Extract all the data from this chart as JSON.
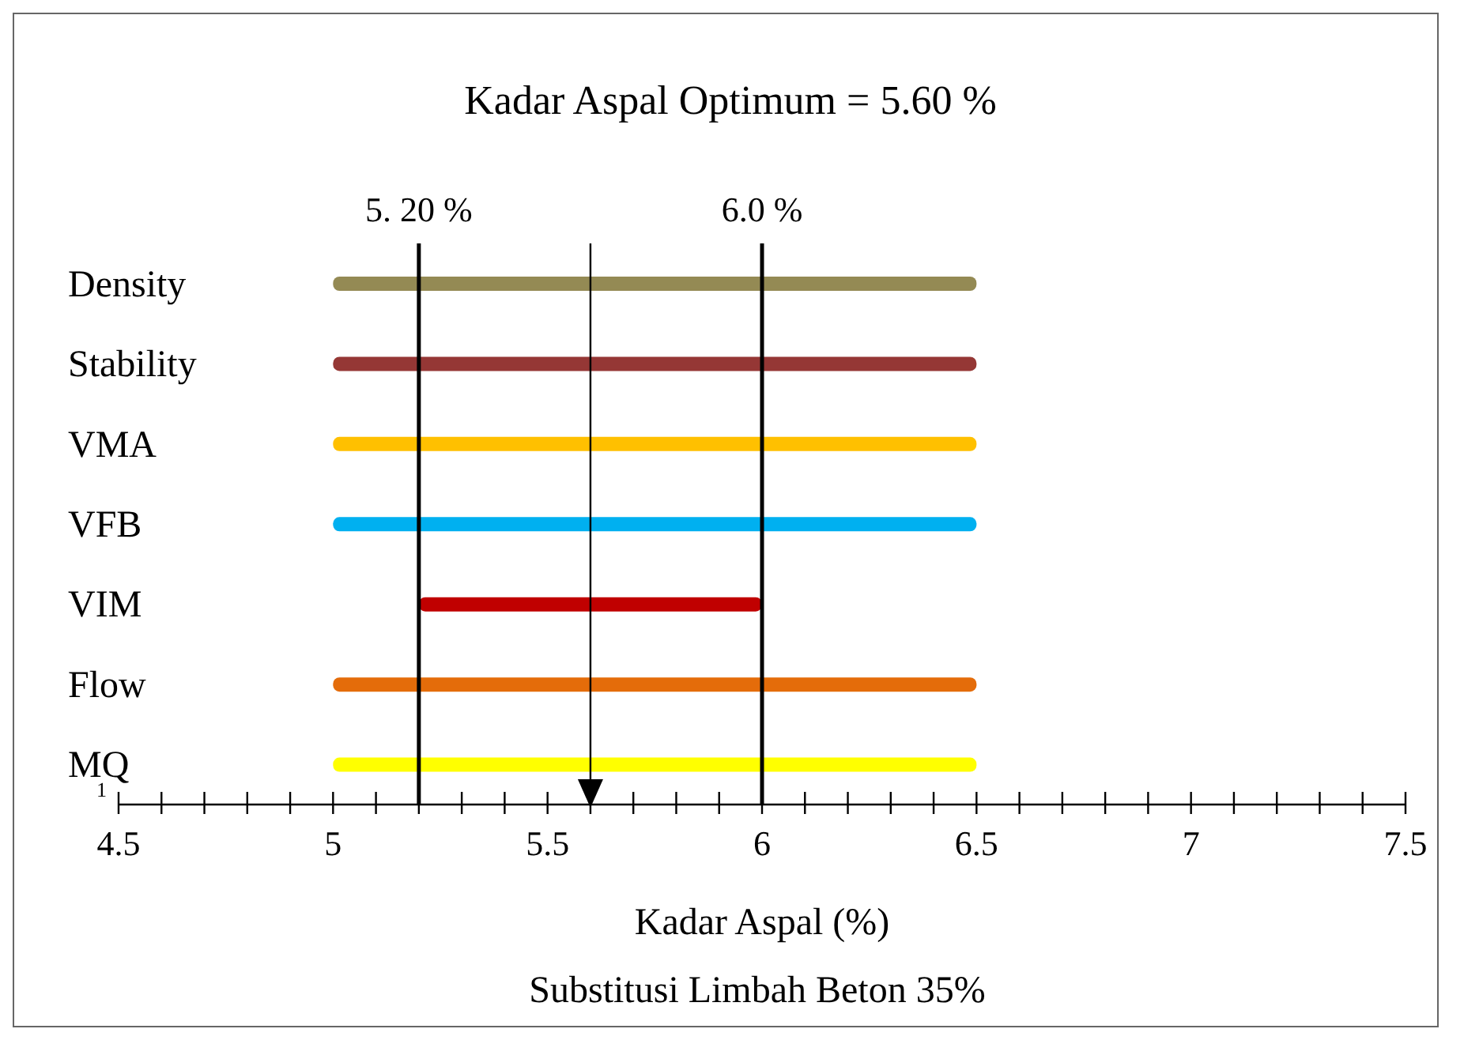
{
  "chart_data": {
    "type": "bar",
    "orientation": "horizontal",
    "title": "Kadar Aspal Optimum = 5.60 %",
    "xlabel": "Kadar Aspal (%)",
    "annotations": [
      "1",
      "Substitusi Limbah Beton 35%"
    ],
    "categories": [
      "Density",
      "Stability",
      "VMA",
      "VFB",
      "VIM",
      "Flow",
      "MQ"
    ],
    "base": [
      5,
      5,
      5,
      5,
      5.2,
      5,
      5
    ],
    "values": [
      1.5,
      1.5,
      1.5,
      1.5,
      0.8,
      1.5,
      1.5
    ],
    "colors": [
      "#948a54",
      "#953735",
      "#ffc000",
      "#00b0f0",
      "#c00000",
      "#e46c0a",
      "#ffff00"
    ],
    "xlim": [
      4.5,
      7.5
    ],
    "xticks": [
      4.5,
      {
        "value": 4.6,
        "label": null
      },
      {
        "value": 4.7,
        "label": null
      },
      {
        "value": 4.8,
        "label": null
      },
      {
        "value": 4.9,
        "label": null
      },
      5,
      {
        "value": 5.1,
        "label": null
      },
      {
        "value": 5.2,
        "label": null
      },
      {
        "value": 5.3,
        "label": null
      },
      {
        "value": 5.4,
        "label": null
      },
      5.5,
      {
        "value": 5.6,
        "label": null
      },
      {
        "value": 5.7,
        "label": null
      },
      {
        "value": 5.8,
        "label": null
      },
      {
        "value": 5.9,
        "label": null
      },
      6,
      {
        "value": 6.1,
        "label": null
      },
      {
        "value": 6.2,
        "label": null
      },
      {
        "value": 6.3,
        "label": null
      },
      {
        "value": 6.4,
        "label": null
      },
      6.5,
      {
        "value": 6.6,
        "label": null
      },
      {
        "value": 6.7,
        "label": null
      },
      {
        "value": 6.8,
        "label": null
      },
      {
        "value": 6.9,
        "label": null
      },
      7,
      {
        "value": 7.1,
        "label": null
      },
      {
        "value": 7.2,
        "label": null
      },
      {
        "value": 7.3,
        "label": null
      },
      {
        "value": 7.4,
        "label": null
      },
      7.5
    ],
    "ref_lines": [
      {
        "axis": "x",
        "value": 5.2,
        "label": "5. 20 %",
        "color": "#000000"
      },
      {
        "axis": "x",
        "value": 6.0,
        "label": "6.0 %",
        "color": "#000000"
      },
      {
        "axis": "x",
        "value": 5.6,
        "label": null,
        "color": "#000000"
      }
    ],
    "grid": false,
    "legend": false
  }
}
